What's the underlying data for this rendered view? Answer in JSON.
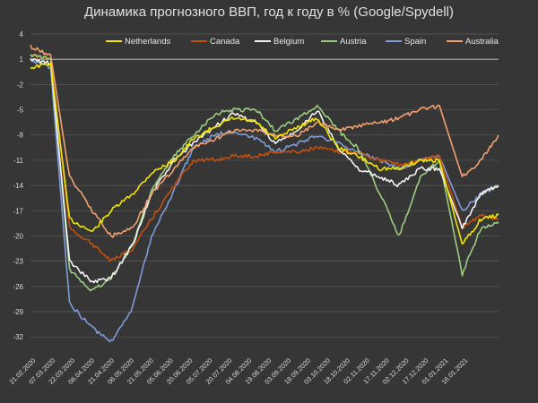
{
  "chart_data": {
    "type": "line",
    "title": "Динамика прогнозного ВВП, год к году в % (Google/Spydell)",
    "xlabel": "",
    "ylabel": "",
    "ylim": [
      -34,
      4
    ],
    "yticks": [
      4,
      1,
      -2,
      -5,
      -8,
      -11,
      -14,
      -17,
      -20,
      -23,
      -26,
      -29,
      -32
    ],
    "grid": true,
    "legend": "top",
    "x_ticks": [
      "21.02.2020",
      "07.03.2020",
      "22.03.2020",
      "06.04.2020",
      "21.04.2020",
      "06.05.2020",
      "21.05.2020",
      "05.06.2020",
      "20.06.2020",
      "05.07.2020",
      "20.07.2020",
      "04.08.2020",
      "19.08.2020",
      "03.09.2020",
      "18.09.2020",
      "03.10.2020",
      "18.10.2020",
      "02.11.2020",
      "17.11.2020",
      "02.12.2020",
      "17.12.2020",
      "01.01.2021",
      "16.01.2021"
    ],
    "x_dates": [
      "2020-02-15",
      "2020-03-01",
      "2020-03-15",
      "2020-04-01",
      "2020-04-15",
      "2020-05-01",
      "2020-05-15",
      "2020-06-01",
      "2020-06-15",
      "2020-07-01",
      "2020-07-15",
      "2020-08-01",
      "2020-08-15",
      "2020-09-01",
      "2020-09-15",
      "2020-10-01",
      "2020-10-15",
      "2020-11-01",
      "2020-11-15",
      "2020-12-01",
      "2020-12-15",
      "2021-01-01",
      "2021-01-15",
      "2021-01-28"
    ],
    "series": [
      {
        "name": "Netherlands",
        "color": "#f2e600",
        "values": [
          0,
          0.5,
          -18,
          -19.5,
          -17,
          -15,
          -12.5,
          -11,
          -8.5,
          -7,
          -6,
          -6.5,
          -8.5,
          -7,
          -6,
          -9.5,
          -10.5,
          -12,
          -12,
          -11,
          -11,
          -21,
          -18,
          -17.5
        ]
      },
      {
        "name": "Canada",
        "color": "#c05010",
        "values": [
          1.5,
          1,
          -19,
          -21,
          -23,
          -21.5,
          -18,
          -14,
          -11,
          -11,
          -10.5,
          -10.5,
          -10,
          -10,
          -9.5,
          -10,
          -10,
          -11,
          -11.5,
          -11,
          -10.5,
          -19,
          -17.5,
          -18
        ]
      },
      {
        "name": "Belgium",
        "color": "#f2f2f2",
        "values": [
          1,
          0.5,
          -23,
          -25.5,
          -25,
          -21,
          -15,
          -11,
          -9,
          -7,
          -5.5,
          -6.5,
          -9,
          -7.5,
          -5,
          -9.5,
          -12,
          -13,
          -14,
          -12,
          -12,
          -19,
          -15,
          -14
        ]
      },
      {
        "name": "Austria",
        "color": "#9ccc80",
        "values": [
          1.5,
          1,
          -24,
          -26.5,
          -25,
          -21,
          -14.5,
          -10.5,
          -8,
          -5.5,
          -5,
          -5,
          -7.5,
          -6,
          -4.5,
          -7.5,
          -9.5,
          -15,
          -20,
          -13,
          -11,
          -24.5,
          -19,
          -18.5
        ]
      },
      {
        "name": "Spain",
        "color": "#7f9cd6",
        "values": [
          1,
          0,
          -28,
          -31,
          -32.5,
          -28.5,
          -20,
          -14.5,
          -9.5,
          -8,
          -7.5,
          -8.5,
          -10,
          -9,
          -8,
          -9,
          -10,
          -11,
          -12,
          -11,
          -10.5,
          -17,
          -15,
          -14
        ]
      },
      {
        "name": "Australia",
        "color": "#f2a06e",
        "values": [
          2.5,
          1.5,
          -13,
          -17,
          -20,
          -19,
          -15,
          -12,
          -9.5,
          -8.5,
          -7.5,
          -7.5,
          -8,
          -8,
          -6.5,
          -7.5,
          -7,
          -6.5,
          -6,
          -5,
          -4.5,
          -13,
          -11,
          -8
        ]
      }
    ]
  }
}
